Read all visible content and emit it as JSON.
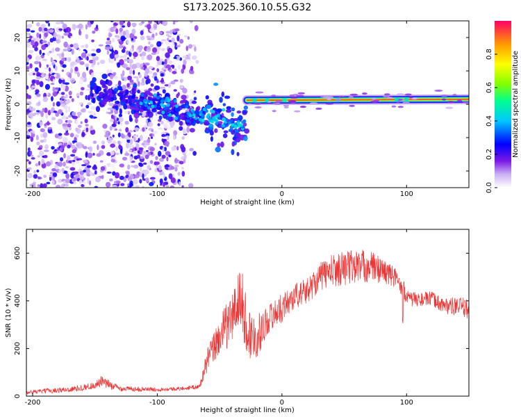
{
  "figure_title": "S173.2025.360.10.55.G32",
  "chart_data": [
    {
      "type": "heatmap",
      "title": "S173.2025.360.10.55.G32",
      "xlabel": "Height of straight line (km)",
      "ylabel": "Frequency (Hz)",
      "xlim": [
        -205,
        150
      ],
      "ylim": [
        -25,
        25
      ],
      "xticks": [
        -200,
        -100,
        0,
        100
      ],
      "yticks": [
        -20,
        -10,
        0,
        10,
        20
      ],
      "colorbar": {
        "label": "Normalized spectral amplitude",
        "range": [
          0.0,
          1.0
        ],
        "ticks": [
          0.0,
          0.2,
          0.4,
          0.6,
          0.8
        ],
        "tick_labels": [
          "0.0",
          "0.2",
          "0.4",
          "0.6",
          "0.8"
        ],
        "colormap": [
          "#ffffff",
          "#cbb1f5",
          "#7a18e6",
          "#0000ff",
          "#00c8ff",
          "#00ff90",
          "#80ff00",
          "#ffff00",
          "#ff9900",
          "#ff0066"
        ]
      },
      "features": {
        "noise_region_x": [
          -205,
          -65
        ],
        "noise_amplitude_range": [
          0.05,
          0.35
        ],
        "descending_trace": {
          "x": [
            -155,
            -100,
            -60,
            -28
          ],
          "freq": [
            4,
            0,
            -4,
            -7
          ]
        },
        "carrier_line": {
          "x": [
            -28,
            150
          ],
          "freq": [
            1.2,
            1.5
          ],
          "peak_amplitude": 0.95
        }
      }
    },
    {
      "type": "line",
      "xlabel": "Height of straight line (km)",
      "ylabel": "SNR (10 * v/v)",
      "xlim": [
        -205,
        150
      ],
      "ylim": [
        0,
        700
      ],
      "xticks": [
        -200,
        -100,
        0,
        100
      ],
      "yticks": [
        0,
        200,
        400,
        600
      ],
      "series": [
        {
          "name": "SNR",
          "color": "#ee3333",
          "x": [
            -205,
            -190,
            -170,
            -150,
            -145,
            -130,
            -100,
            -80,
            -66,
            -60,
            -50,
            -40,
            -33,
            -27,
            -20,
            -10,
            0,
            10,
            20,
            30,
            40,
            50,
            60,
            70,
            80,
            90,
            97,
            100,
            110,
            120,
            130,
            140,
            150
          ],
          "values": [
            15,
            22,
            28,
            45,
            60,
            32,
            28,
            32,
            40,
            150,
            250,
            330,
            420,
            260,
            250,
            330,
            370,
            420,
            440,
            500,
            525,
            540,
            545,
            545,
            530,
            500,
            460,
            410,
            405,
            410,
            380,
            375,
            370
          ],
          "noise_amplitude": [
            8,
            10,
            12,
            15,
            25,
            12,
            8,
            8,
            10,
            50,
            80,
            110,
            140,
            120,
            90,
            60,
            60,
            55,
            55,
            60,
            70,
            75,
            75,
            70,
            55,
            45,
            40,
            35,
            30,
            30,
            35,
            40,
            45
          ]
        }
      ]
    }
  ]
}
